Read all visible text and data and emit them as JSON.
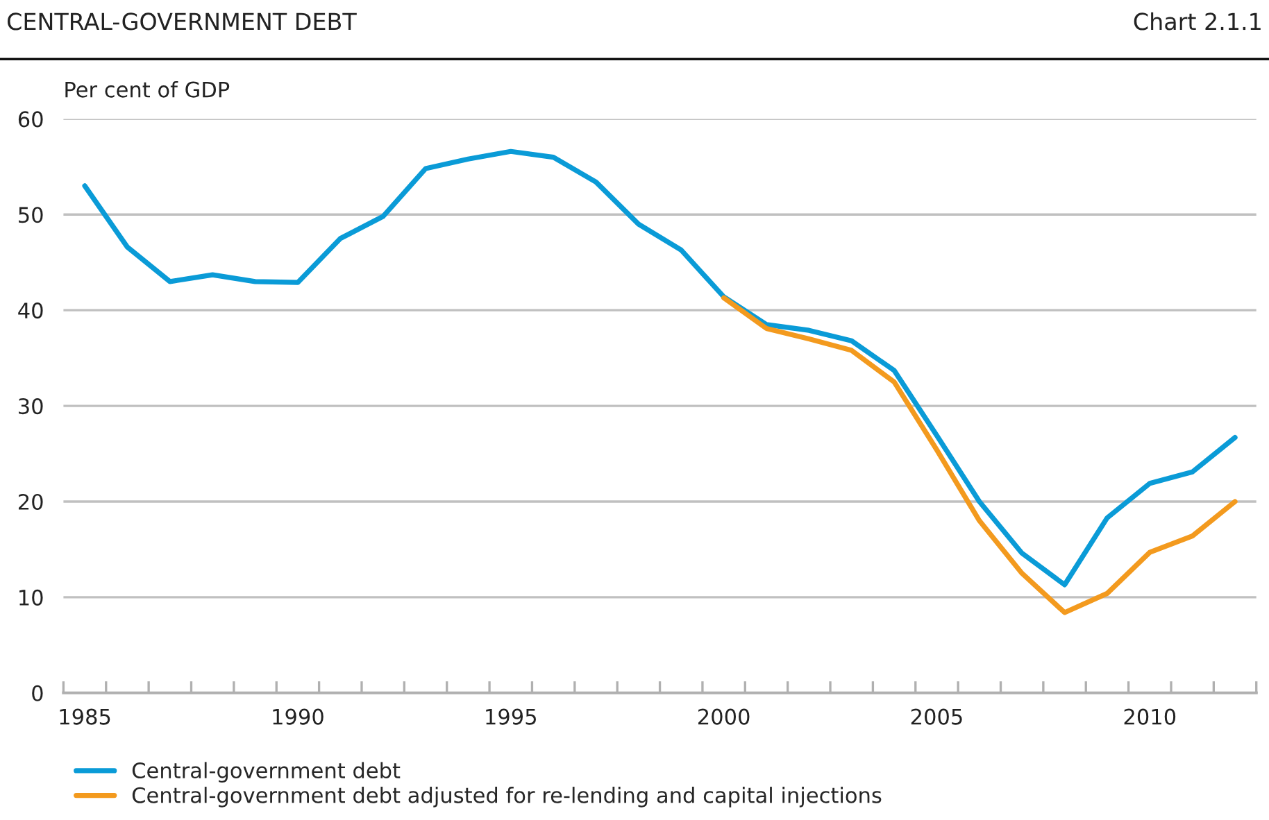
{
  "chart_data": {
    "type": "line",
    "title": "CENTRAL-GOVERNMENT DEBT",
    "ylabel": "Per cent of GDP",
    "annotations": [
      "Chart 2.1.1"
    ],
    "x": [
      1985,
      1986,
      1987,
      1988,
      1989,
      1990,
      1991,
      1992,
      1993,
      1994,
      1995,
      1996,
      1997,
      1998,
      1999,
      2000,
      2001,
      2002,
      2003,
      2004,
      2005,
      2006,
      2007,
      2008,
      2009,
      2010,
      2011,
      2012
    ],
    "series": [
      {
        "name": "Central-government debt",
        "color": "#0a9bd7",
        "values": [
          53.0,
          46.6,
          43.0,
          43.7,
          43.0,
          42.9,
          47.5,
          49.8,
          54.8,
          55.8,
          56.6,
          56.0,
          53.4,
          49.0,
          46.3,
          41.4,
          38.5,
          37.9,
          36.8,
          33.7,
          26.9,
          20.0,
          14.6,
          11.3,
          18.3,
          21.9,
          23.1,
          26.7
        ]
      },
      {
        "name": "Central-government debt adjusted for re-lending and capital injections",
        "color": "#f39a1e",
        "values": [
          null,
          null,
          null,
          null,
          null,
          null,
          null,
          null,
          null,
          null,
          null,
          null,
          null,
          null,
          null,
          41.3,
          38.1,
          37.0,
          35.8,
          32.5,
          25.4,
          18.0,
          12.5,
          8.4,
          10.4,
          14.7,
          16.4,
          20.0
        ]
      }
    ],
    "xlim": [
      1984.5,
      2012.5
    ],
    "xticks": [
      {
        "value": 1984.5,
        "label": null
      },
      1985,
      {
        "value": 1985.5,
        "label": null
      },
      {
        "value": 1986.5,
        "label": null
      },
      {
        "value": 1987.5,
        "label": null
      },
      {
        "value": 1988.5,
        "label": null
      },
      {
        "value": 1989.5,
        "label": null
      },
      1990,
      {
        "value": 1990.5,
        "label": null
      },
      {
        "value": 1991.5,
        "label": null
      },
      {
        "value": 1992.5,
        "label": null
      },
      {
        "value": 1993.5,
        "label": null
      },
      {
        "value": 1994.5,
        "label": null
      },
      1995,
      {
        "value": 1995.5,
        "label": null
      },
      {
        "value": 1996.5,
        "label": null
      },
      {
        "value": 1997.5,
        "label": null
      },
      {
        "value": 1998.5,
        "label": null
      },
      {
        "value": 1999.5,
        "label": null
      },
      2000,
      {
        "value": 2000.5,
        "label": null
      },
      {
        "value": 2001.5,
        "label": null
      },
      {
        "value": 2002.5,
        "label": null
      },
      {
        "value": 2003.5,
        "label": null
      },
      {
        "value": 2004.5,
        "label": null
      },
      2005,
      {
        "value": 2005.5,
        "label": null
      },
      {
        "value": 2006.5,
        "label": null
      },
      {
        "value": 2007.5,
        "label": null
      },
      {
        "value": 2008.5,
        "label": null
      },
      {
        "value": 2009.5,
        "label": null
      },
      2010,
      {
        "value": 2010.5,
        "label": null
      },
      {
        "value": 2011.5,
        "label": null
      },
      {
        "value": 2012.5,
        "label": null
      }
    ],
    "ylim": [
      0,
      60
    ],
    "yticks": [
      0,
      10,
      20,
      30,
      40,
      50,
      60
    ],
    "grid": "y",
    "legend": "bottom",
    "marker": "none",
    "line_style": "solid"
  }
}
